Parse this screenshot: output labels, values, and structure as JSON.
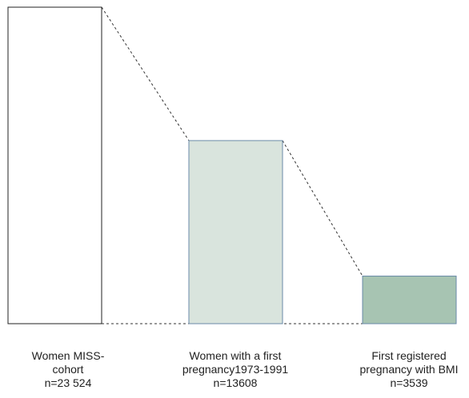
{
  "chart_data": {
    "type": "bar",
    "categories": [
      [
        "Women MISS-",
        "cohort",
        "n=23 524"
      ],
      [
        "Women with a first",
        "pregnancy1973-1991",
        "n=13608"
      ],
      [
        "First registered",
        "pregnancy with BMI",
        "n=3539"
      ]
    ],
    "values": [
      23524,
      13608,
      3539
    ],
    "colors": [
      "#ffffff",
      "#d9e4dd",
      "#a7c4b2"
    ],
    "bar_border_color": "#6a8aa8",
    "first_bar_border_color": "#222222",
    "connector_style": "dotted",
    "title": "",
    "xlabel": "",
    "ylabel": ""
  }
}
